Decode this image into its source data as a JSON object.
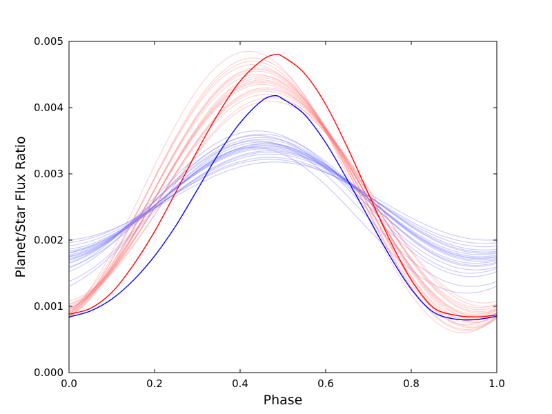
{
  "chart_data": {
    "type": "line",
    "title": "",
    "xlabel": "Phase",
    "ylabel": "Planet/Star Flux Ratio",
    "xlim": [
      0.0,
      1.0
    ],
    "ylim": [
      0.0,
      0.005
    ],
    "xticks": [
      "0.0",
      "0.2",
      "0.4",
      "0.6",
      "0.8",
      "1.0"
    ],
    "yticks": [
      "0.000",
      "0.001",
      "0.002",
      "0.003",
      "0.004",
      "0.005"
    ],
    "grid": false,
    "legend": "none",
    "colors": {
      "red_series": "#ff0000",
      "blue_series": "#0000ff",
      "red_samples": "#ff6b6b",
      "blue_samples": "#6b6bff"
    },
    "series": [
      {
        "color": "#ff0000",
        "x": [
          0.0,
          0.05,
          0.1,
          0.15,
          0.2,
          0.25,
          0.3,
          0.35,
          0.4,
          0.45,
          0.48,
          0.5,
          0.55,
          0.6,
          0.65,
          0.7,
          0.75,
          0.8,
          0.85,
          0.9,
          0.95,
          1.0
        ],
        "values": [
          0.00088,
          0.00097,
          0.00121,
          0.00162,
          0.00213,
          0.00273,
          0.00335,
          0.00392,
          0.0044,
          0.00471,
          0.0048,
          0.00477,
          0.00452,
          0.00405,
          0.00341,
          0.0027,
          0.002,
          0.0014,
          0.00099,
          0.00087,
          0.00084,
          0.00087
        ]
      },
      {
        "color": "#0000ff",
        "x": [
          0.0,
          0.05,
          0.1,
          0.15,
          0.2,
          0.25,
          0.3,
          0.35,
          0.4,
          0.45,
          0.48,
          0.5,
          0.55,
          0.6,
          0.65,
          0.7,
          0.75,
          0.8,
          0.85,
          0.9,
          0.95,
          1.0
        ],
        "values": [
          0.00084,
          0.00093,
          0.00111,
          0.00139,
          0.00176,
          0.00222,
          0.00276,
          0.00331,
          0.00377,
          0.0041,
          0.00418,
          0.00413,
          0.0039,
          0.00347,
          0.00292,
          0.00234,
          0.00176,
          0.00126,
          0.00092,
          0.00081,
          0.0008,
          0.00085
        ]
      }
    ],
    "samples": {
      "red": [
        {
          "base": 0.00085,
          "peak": 0.0044,
          "phase": 0.45
        },
        {
          "base": 0.00075,
          "peak": 0.00455,
          "phase": 0.44
        },
        {
          "base": 0.0009,
          "peak": 0.0043,
          "phase": 0.46
        },
        {
          "base": 0.00065,
          "peak": 0.0047,
          "phase": 0.43
        },
        {
          "base": 0.001,
          "peak": 0.00415,
          "phase": 0.47
        },
        {
          "base": 0.0008,
          "peak": 0.00445,
          "phase": 0.45
        },
        {
          "base": 0.0007,
          "peak": 0.0046,
          "phase": 0.44
        },
        {
          "base": 0.00095,
          "peak": 0.00425,
          "phase": 0.46
        },
        {
          "base": 0.0006,
          "peak": 0.00485,
          "phase": 0.42
        },
        {
          "base": 0.00088,
          "peak": 0.00435,
          "phase": 0.45
        },
        {
          "base": 0.00078,
          "peak": 0.0045,
          "phase": 0.44
        },
        {
          "base": 0.00105,
          "peak": 0.0041,
          "phase": 0.47
        },
        {
          "base": 0.00072,
          "peak": 0.00465,
          "phase": 0.43
        },
        {
          "base": 0.00092,
          "peak": 0.00428,
          "phase": 0.46
        },
        {
          "base": 0.00082,
          "peak": 0.00442,
          "phase": 0.45
        },
        {
          "base": 0.00068,
          "peak": 0.00458,
          "phase": 0.44
        },
        {
          "base": 0.00098,
          "peak": 0.0042,
          "phase": 0.46
        },
        {
          "base": 0.00076,
          "peak": 0.00448,
          "phase": 0.45
        },
        {
          "base": 0.00086,
          "peak": 0.00438,
          "phase": 0.45
        },
        {
          "base": 0.00063,
          "peak": 0.00475,
          "phase": 0.43
        }
      ],
      "blue": [
        {
          "base": 0.0017,
          "peak": 0.00345,
          "phase": 0.46
        },
        {
          "base": 0.0016,
          "peak": 0.0036,
          "phase": 0.45
        },
        {
          "base": 0.0018,
          "peak": 0.00335,
          "phase": 0.47
        },
        {
          "base": 0.0015,
          "peak": 0.00365,
          "phase": 0.44
        },
        {
          "base": 0.0019,
          "peak": 0.00325,
          "phase": 0.47
        },
        {
          "base": 0.00175,
          "peak": 0.0034,
          "phase": 0.46
        },
        {
          "base": 0.00165,
          "peak": 0.00352,
          "phase": 0.45
        },
        {
          "base": 0.0013,
          "peak": 0.0035,
          "phase": 0.44
        },
        {
          "base": 0.002,
          "peak": 0.00318,
          "phase": 0.48
        },
        {
          "base": 0.00172,
          "peak": 0.00342,
          "phase": 0.46
        },
        {
          "base": 0.00162,
          "peak": 0.00355,
          "phase": 0.45
        },
        {
          "base": 0.00185,
          "peak": 0.0033,
          "phase": 0.47
        },
        {
          "base": 0.00155,
          "peak": 0.00348,
          "phase": 0.45
        },
        {
          "base": 0.00168,
          "peak": 0.00346,
          "phase": 0.46
        },
        {
          "base": 0.00178,
          "peak": 0.00338,
          "phase": 0.46
        },
        {
          "base": 0.00145,
          "peak": 0.00358,
          "phase": 0.44
        },
        {
          "base": 0.00195,
          "peak": 0.00322,
          "phase": 0.47
        },
        {
          "base": 0.00173,
          "peak": 0.00343,
          "phase": 0.46
        },
        {
          "base": 0.0012,
          "peak": 0.0034,
          "phase": 0.43
        },
        {
          "base": 0.00182,
          "peak": 0.00333,
          "phase": 0.47
        }
      ]
    }
  }
}
